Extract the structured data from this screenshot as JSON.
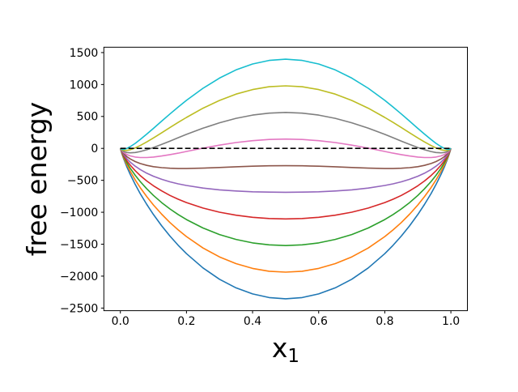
{
  "figure": {
    "background": "#ffffff",
    "spine_color": "#000000"
  },
  "chart_data": {
    "type": "line",
    "title": "",
    "xlabel": "x",
    "xlabel_sub": "1",
    "ylabel": "free energy",
    "xlim": [
      -0.05,
      1.05
    ],
    "ylim": [
      -2541,
      1584
    ],
    "grid": false,
    "legend": "none",
    "x_ticks": {
      "values": [
        0.0,
        0.2,
        0.4,
        0.6,
        0.8,
        1.0
      ],
      "labels": [
        "0.0",
        "0.2",
        "0.4",
        "0.6",
        "0.8",
        "1.0"
      ]
    },
    "y_ticks": {
      "values": [
        1500,
        1000,
        500,
        0,
        -500,
        -1000,
        -1500,
        -2000,
        -2500
      ],
      "labels": [
        "1500",
        "1000",
        "500",
        "0",
        "−500",
        "−1000",
        "−1500",
        "−2000",
        "−2500"
      ]
    },
    "x": [
      0,
      0.005,
      0.01,
      0.02,
      0.03,
      0.045,
      0.06,
      0.08,
      0.1,
      0.125,
      0.15,
      0.175,
      0.2,
      0.25,
      0.3,
      0.35,
      0.4,
      0.45,
      0.5,
      0.55,
      0.6,
      0.65,
      0.7,
      0.75,
      0.8,
      0.825,
      0.85,
      0.875,
      0.9,
      0.92,
      0.94,
      0.955,
      0.97,
      0.98,
      0.99,
      0.995,
      1.0
    ],
    "series": [
      {
        "name": "blue",
        "color": "#1f77b4",
        "y_at_center": -2354,
        "values": [
          0,
          -91,
          -164,
          -294,
          -409,
          -565,
          -707,
          -879,
          -1036,
          -1213,
          -1373,
          -1518,
          -1648,
          -1871,
          -2049,
          -2184,
          -2279,
          -2335,
          -2354,
          -2335,
          -2279,
          -2184,
          -2049,
          -1871,
          -1648,
          -1518,
          -1373,
          -1213,
          -1036,
          -879,
          -707,
          -565,
          -409,
          -294,
          -164,
          -91,
          0
        ]
      },
      {
        "name": "orange",
        "color": "#ff7f0e",
        "y_at_center": -1937,
        "values": [
          0,
          -83,
          -148,
          -261,
          -360,
          -494,
          -613,
          -757,
          -886,
          -1031,
          -1161,
          -1277,
          -1381,
          -1559,
          -1699,
          -1804,
          -1879,
          -1923,
          -1937,
          -1923,
          -1879,
          -1804,
          -1699,
          -1559,
          -1381,
          -1277,
          -1161,
          -1031,
          -886,
          -757,
          -613,
          -494,
          -360,
          -261,
          -148,
          -83,
          0
        ]
      },
      {
        "name": "green",
        "color": "#2ca02c",
        "y_at_center": -1521,
        "values": [
          0,
          -74,
          -131,
          -228,
          -312,
          -422,
          -519,
          -634,
          -736,
          -849,
          -948,
          -1036,
          -1115,
          -1246,
          -1349,
          -1425,
          -1479,
          -1510,
          -1521,
          -1510,
          -1479,
          -1425,
          -1349,
          -1246,
          -1115,
          -1036,
          -948,
          -849,
          -736,
          -634,
          -519,
          -422,
          -312,
          -228,
          -131,
          -74,
          0
        ]
      },
      {
        "name": "red",
        "color": "#d62728",
        "y_at_center": -1104,
        "values": [
          0,
          -66,
          -115,
          -196,
          -263,
          -350,
          -425,
          -511,
          -586,
          -666,
          -736,
          -796,
          -848,
          -934,
          -999,
          -1046,
          -1079,
          -1098,
          -1104,
          -1098,
          -1079,
          -1046,
          -999,
          -934,
          -848,
          -796,
          -736,
          -666,
          -586,
          -511,
          -425,
          -350,
          -263,
          -196,
          -115,
          -66,
          0
        ]
      },
      {
        "name": "purple",
        "color": "#9467bd",
        "y_at_center": -687,
        "values": [
          0,
          -58,
          -98,
          -163,
          -215,
          -279,
          -331,
          -389,
          -436,
          -484,
          -523,
          -555,
          -581,
          -621,
          -649,
          -667,
          -679,
          -685,
          -687,
          -685,
          -679,
          -667,
          -649,
          -621,
          -581,
          -555,
          -523,
          -484,
          -436,
          -389,
          -331,
          -279,
          -215,
          -163,
          -98,
          -58,
          0
        ]
      },
      {
        "name": "brown",
        "color": "#8c564b",
        "y_at_center": -271,
        "values": [
          0,
          -50,
          -82,
          -130,
          -166,
          -207,
          -237,
          -266,
          -286,
          -302,
          -311,
          -315,
          -315,
          -309,
          -299,
          -288,
          -279,
          -273,
          -271,
          -273,
          -279,
          -288,
          -299,
          -309,
          -315,
          -315,
          -311,
          -302,
          -286,
          -266,
          -237,
          -207,
          -166,
          -130,
          -82,
          -50,
          0
        ]
      },
      {
        "name": "pink",
        "color": "#e377c2",
        "y_at_center": 146,
        "values": [
          0,
          -41,
          -65,
          -98,
          -118,
          -135,
          -143,
          -143,
          -136,
          -119,
          -98,
          -74,
          -48,
          4,
          51,
          91,
          121,
          140,
          146,
          140,
          121,
          91,
          51,
          4,
          -48,
          -74,
          -98,
          -119,
          -136,
          -143,
          -143,
          -135,
          -118,
          -98,
          -65,
          -41,
          0
        ]
      },
      {
        "name": "gray",
        "color": "#7f7f7f",
        "y_at_center": 563,
        "values": [
          0,
          -33,
          -49,
          -65,
          -69,
          -64,
          -49,
          -21,
          14,
          63,
          114,
          167,
          219,
          316,
          401,
          471,
          521,
          552,
          563,
          552,
          521,
          471,
          401,
          316,
          219,
          167,
          114,
          63,
          14,
          -21,
          -49,
          -64,
          -69,
          -65,
          -49,
          -33,
          0
        ]
      },
      {
        "name": "olive",
        "color": "#bcbd22",
        "y_at_center": 979,
        "values": [
          0,
          -25,
          -32,
          -32,
          -21,
          8,
          45,
          102,
          164,
          245,
          327,
          407,
          485,
          629,
          751,
          850,
          921,
          965,
          979,
          965,
          921,
          850,
          751,
          629,
          485,
          407,
          327,
          245,
          164,
          102,
          45,
          8,
          -21,
          -32,
          -32,
          -25,
          0
        ]
      },
      {
        "name": "cyan",
        "color": "#17becf",
        "y_at_center": 1396,
        "values": [
          0,
          -16,
          -16,
          0,
          28,
          79,
          139,
          225,
          314,
          427,
          539,
          648,
          752,
          941,
          1101,
          1229,
          1321,
          1377,
          1396,
          1377,
          1321,
          1229,
          1101,
          941,
          752,
          648,
          539,
          427,
          314,
          225,
          139,
          79,
          28,
          0,
          -16,
          -16,
          0
        ]
      }
    ],
    "reference_line": {
      "name": "zero-line",
      "y": 0,
      "x_start": 0,
      "x_end": 1,
      "color": "#000000",
      "linestyle": "dashed"
    }
  }
}
